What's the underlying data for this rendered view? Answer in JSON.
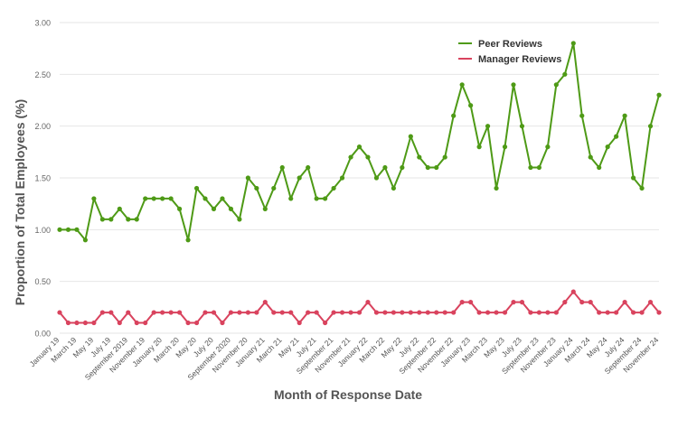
{
  "chart_data": {
    "type": "line",
    "title": "",
    "xlabel": "Month of Response Date",
    "ylabel": "Proportion of Total Employees (%)",
    "ylim": [
      0,
      3
    ],
    "yticks": [
      "0.00",
      "0.50",
      "1.00",
      "1.50",
      "2.00",
      "2.50",
      "3.00"
    ],
    "grid": "horizontal",
    "legend_position": "top-right",
    "x_tick_labels": [
      "January 19",
      "March 19",
      "May 19",
      "July 19",
      "September 2019",
      "November 19",
      "January 20",
      "March 20",
      "May 20",
      "July 20",
      "September 2020",
      "November 20",
      "January 21",
      "March 21",
      "May 21",
      "July 21",
      "September 21",
      "November 21",
      "January 22",
      "March 22",
      "May 22",
      "July 22",
      "September 22",
      "November 22",
      "January 23",
      "March 23",
      "May 23",
      "July 23",
      "September 23",
      "November 23",
      "January 24",
      "March 24",
      "May 24",
      "July 24",
      "September 24",
      "November 24"
    ],
    "series": [
      {
        "name": "Peer Reviews",
        "color": "#4e9a16",
        "values": [
          1.0,
          1.0,
          1.0,
          0.9,
          1.3,
          1.1,
          1.1,
          1.2,
          1.1,
          1.1,
          1.3,
          1.3,
          1.3,
          1.3,
          1.2,
          0.9,
          1.4,
          1.3,
          1.2,
          1.3,
          1.2,
          1.1,
          1.5,
          1.4,
          1.2,
          1.4,
          1.6,
          1.3,
          1.5,
          1.6,
          1.3,
          1.3,
          1.4,
          1.5,
          1.7,
          1.8,
          1.7,
          1.5,
          1.6,
          1.4,
          1.6,
          1.9,
          1.7,
          1.6,
          1.6,
          1.7,
          2.1,
          2.4,
          2.2,
          1.8,
          2.0,
          1.4,
          1.8,
          2.4,
          2.0,
          1.6,
          1.6,
          1.8,
          2.4,
          2.5,
          2.8,
          2.1,
          1.7,
          1.6,
          1.8,
          1.9,
          2.1,
          1.5,
          1.4,
          2.0,
          2.3
        ]
      },
      {
        "name": "Manager Reviews",
        "color": "#d9435e",
        "values": [
          0.2,
          0.1,
          0.1,
          0.1,
          0.1,
          0.2,
          0.2,
          0.1,
          0.2,
          0.1,
          0.1,
          0.2,
          0.2,
          0.2,
          0.2,
          0.1,
          0.1,
          0.2,
          0.2,
          0.1,
          0.2,
          0.2,
          0.2,
          0.2,
          0.3,
          0.2,
          0.2,
          0.2,
          0.1,
          0.2,
          0.2,
          0.1,
          0.2,
          0.2,
          0.2,
          0.2,
          0.3,
          0.2,
          0.2,
          0.2,
          0.2,
          0.2,
          0.2,
          0.2,
          0.2,
          0.2,
          0.2,
          0.3,
          0.3,
          0.2,
          0.2,
          0.2,
          0.2,
          0.3,
          0.3,
          0.2,
          0.2,
          0.2,
          0.2,
          0.3,
          0.4,
          0.3,
          0.3,
          0.2,
          0.2,
          0.2,
          0.3,
          0.2,
          0.2,
          0.3,
          0.2
        ]
      }
    ]
  }
}
